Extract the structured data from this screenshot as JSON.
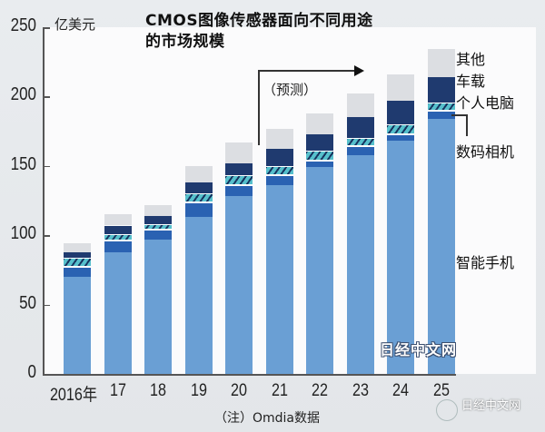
{
  "title_line1": "CMOS图像传感器面向不同用途",
  "title_line2": "的市场规模",
  "unit": "亿美元",
  "forecast_label": "（预测）",
  "note": "（注）Omdia数据",
  "watermark": "日经中文网",
  "watermark_small": "日经中文网",
  "yticks": [
    "0",
    "50",
    "100",
    "150",
    "200",
    "250"
  ],
  "legend": {
    "other": "其他",
    "auto": "车载",
    "pc": "个人电脑",
    "camera": "数码相机",
    "smartphone": "智能手机"
  },
  "colors": {
    "smartphone": "#6a9fd4",
    "camera": "#2a62b2",
    "pc": "#56c0cc",
    "auto": "#1f3a6f",
    "other": "#dcdee2"
  },
  "chart_data": {
    "type": "bar",
    "stacked": true,
    "title": "CMOS图像传感器面向不同用途的市场规模",
    "xlabel": "",
    "ylabel": "亿美元",
    "ylim": [
      0,
      250
    ],
    "yticks": [
      0,
      50,
      100,
      150,
      200,
      250
    ],
    "categories": [
      "2016年",
      "17",
      "18",
      "19",
      "20",
      "21",
      "22",
      "23",
      "24",
      "25"
    ],
    "forecast_from": "21",
    "forecast_label": "（预测）",
    "series": [
      {
        "name": "智能手机",
        "values": [
          70,
          88,
          97,
          113,
          128,
          136,
          149,
          158,
          168,
          184
        ]
      },
      {
        "name": "数码相机",
        "values": [
          7,
          8,
          7,
          11,
          8,
          7,
          5,
          6,
          5,
          6
        ]
      },
      {
        "name": "个人电脑",
        "values": [
          7,
          5,
          4,
          6,
          7,
          7,
          7,
          6,
          7,
          6
        ]
      },
      {
        "name": "车载",
        "values": [
          4,
          6,
          6,
          8,
          9,
          12,
          12,
          15,
          17,
          18
        ]
      },
      {
        "name": "其他",
        "values": [
          6,
          8,
          8,
          12,
          15,
          15,
          15,
          17,
          19,
          20
        ]
      }
    ],
    "totals": [
      94,
      115,
      122,
      150,
      167,
      177,
      188,
      202,
      216,
      234
    ],
    "legend_position": "right",
    "grid": false,
    "source_note": "（注）Omdia数据"
  }
}
